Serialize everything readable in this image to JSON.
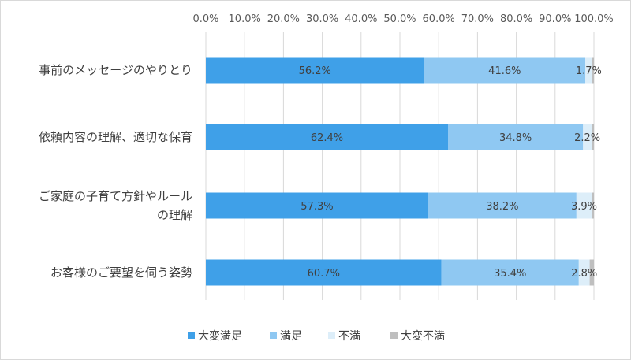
{
  "chart_data": {
    "type": "bar",
    "orientation": "horizontal",
    "stacked": true,
    "x_axis_position": "top",
    "xlim": [
      0,
      100
    ],
    "x_ticks": [
      "0.0%",
      "10.0%",
      "20.0%",
      "30.0%",
      "40.0%",
      "50.0%",
      "60.0%",
      "70.0%",
      "80.0%",
      "90.0%",
      "100.0%"
    ],
    "grid": true,
    "legend_position": "bottom",
    "categories": [
      [
        "事前のメッセージのやりとり"
      ],
      [
        "依頼内容の理解、適切な保育"
      ],
      [
        "ご家庭の子育て方針やルール",
        "の理解"
      ],
      [
        "お客様のご要望を伺う姿勢"
      ]
    ],
    "series": [
      {
        "name": "大変満足",
        "color": "#3fa0e8",
        "values": [
          56.2,
          62.4,
          57.3,
          60.7
        ],
        "labels": [
          "56.2%",
          "62.4%",
          "57.3%",
          "60.7%"
        ]
      },
      {
        "name": "満足",
        "color": "#8fc8f2",
        "values": [
          41.6,
          34.8,
          38.2,
          35.4
        ],
        "labels": [
          "41.6%",
          "34.8%",
          "38.2%",
          "35.4%"
        ]
      },
      {
        "name": "不満",
        "color": "#ddeef9",
        "values": [
          1.7,
          2.2,
          3.9,
          2.8
        ],
        "labels": [
          "1.7%",
          "2.2%",
          "3.9%",
          "2.8%"
        ]
      },
      {
        "name": "大変不満",
        "color": "#bfbfbf",
        "values": [
          0.5,
          0.6,
          0.6,
          1.1
        ],
        "labels": []
      }
    ]
  }
}
